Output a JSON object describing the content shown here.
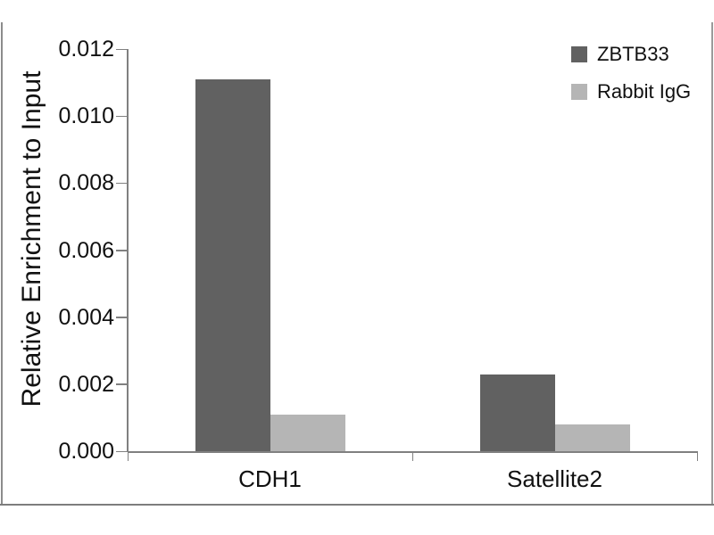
{
  "chart_data": {
    "type": "bar",
    "title": "",
    "xlabel": "",
    "ylabel": "Relative Enrichment to Input",
    "categories": [
      "CDH1",
      "Satellite2"
    ],
    "series": [
      {
        "name": "ZBTB33",
        "color": "#616161",
        "values": [
          0.0111,
          0.0023
        ]
      },
      {
        "name": "Rabbit IgG",
        "color": "#b5b5b5",
        "values": [
          0.0011,
          0.0008
        ]
      }
    ],
    "ylim": [
      0,
      0.012
    ],
    "yticks": [
      0,
      0.002,
      0.004,
      0.006,
      0.008,
      0.01,
      0.012
    ],
    "ytick_labels": [
      "0.000",
      "0.002",
      "0.004",
      "0.006",
      "0.008",
      "0.010",
      "0.012"
    ],
    "grid": false,
    "legend_position": "top-right"
  },
  "colors": {
    "axis": "#808080",
    "text": "#111111",
    "frame": "#8c8c8c",
    "background": "#ffffff"
  }
}
